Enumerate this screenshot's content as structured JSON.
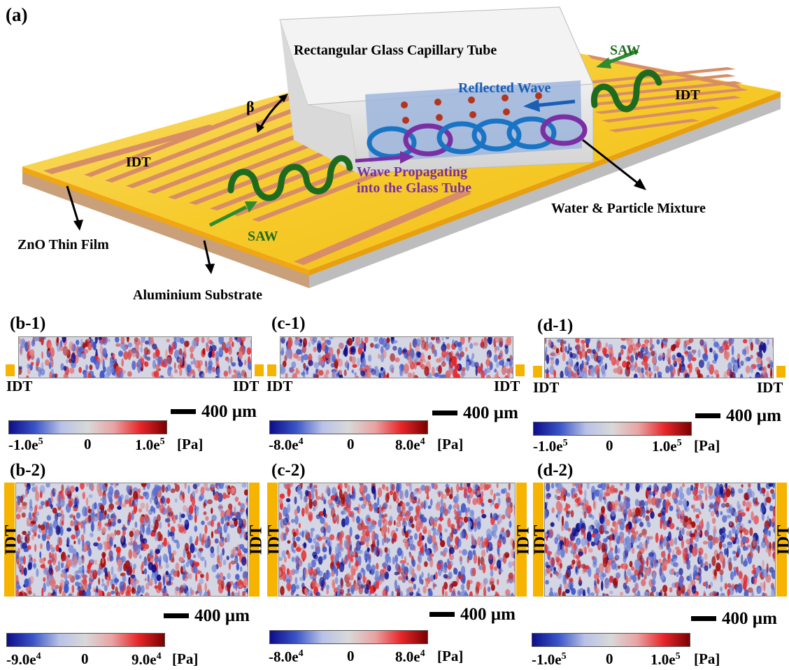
{
  "panel_a": {
    "label": "(a)",
    "tube_label": "Rectangular Glass Capillary Tube",
    "reflected_wave": "Reflected Wave",
    "wave_propagating_line1": "Wave Propagating",
    "wave_propagating_line2": "into the Glass Tube",
    "saw_left": "SAW",
    "saw_right": "SAW",
    "idt_left": "IDT",
    "idt_right": "IDT",
    "beta": "β",
    "zno": "ZnO Thin Film",
    "substrate": "Aluminium Substrate",
    "mixture": "Water & Particle Mixture",
    "colors": {
      "gold": "#f5c21a",
      "finger": "#d28a6a",
      "tube": "#e6e6e6",
      "saw_green": "#1e6b1e",
      "reflected_blue": "#1a5fb4",
      "propagating_purple": "#7a2fa3",
      "particle": "#b5351c"
    }
  },
  "panels": [
    {
      "label": "(b-1)",
      "idt_left": "IDT",
      "idt_right": "IDT",
      "scale": "400 µm",
      "cmin": "-1.0e",
      "cmin_exp": "5",
      "cmid": "0",
      "cmax": "1.0e",
      "cmax_exp": "5",
      "unit": "[Pa]"
    },
    {
      "label": "(c-1)",
      "idt_left": "IDT",
      "idt_right": "IDT",
      "scale": "400 µm",
      "cmin": "-8.0e",
      "cmin_exp": "4",
      "cmid": "0",
      "cmax": "8.0e",
      "cmax_exp": "4",
      "unit": "[Pa]"
    },
    {
      "label": "(d-1)",
      "idt_left": "IDT",
      "idt_right": "IDT",
      "scale": "400 µm",
      "cmin": "-1.0e",
      "cmin_exp": "5",
      "cmid": "0",
      "cmax": "1.0e",
      "cmax_exp": "5",
      "unit": "[Pa]"
    },
    {
      "label": "(b-2)",
      "idt_left": "IDT",
      "idt_right": "IDT",
      "scale": "400 µm",
      "cmin": "-9.0e",
      "cmin_exp": "4",
      "cmid": "0",
      "cmax": "9.0e",
      "cmax_exp": "4",
      "unit": "[Pa]"
    },
    {
      "label": "(c-2)",
      "idt_left": "IDT",
      "idt_right": "IDT",
      "scale": "400 µm",
      "cmin": "-8.0e",
      "cmin_exp": "4",
      "cmid": "0",
      "cmax": "8.0e",
      "cmax_exp": "4",
      "unit": "[Pa]"
    },
    {
      "label": "(d-2)",
      "idt_left": "IDT",
      "idt_right": "IDT",
      "scale": "400 µm",
      "cmin": "-1.0e",
      "cmin_exp": "5",
      "cmid": "0",
      "cmax": "1.0e",
      "cmax_exp": "5",
      "unit": "[Pa]"
    }
  ],
  "colormap": [
    "#0d0d8a",
    "#3a55c8",
    "#b9c2e6",
    "#d9d9d9",
    "#e9a3a3",
    "#e8262a",
    "#7a0000"
  ]
}
